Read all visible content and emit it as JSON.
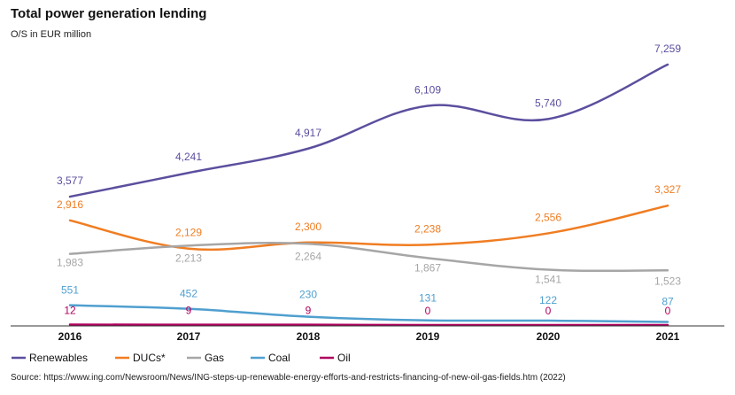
{
  "title": "Total power generation lending",
  "subtitle": "O/S in EUR million",
  "source": "Source: https://www.ing.com/Newsroom/News/ING-steps-up-renewable-energy-efforts-and-restricts-financing-of-new-oil-gas-fields.htm (2022)",
  "chart_data": {
    "type": "line",
    "x": [
      "2016",
      "2017",
      "2018",
      "2019",
      "2020",
      "2021"
    ],
    "ylim": [
      0,
      7700
    ],
    "grid": false,
    "legend_position": "bottom",
    "series": [
      {
        "name": "Renewables",
        "color": "#5b4f9e",
        "values": [
          3577,
          4241,
          4917,
          6109,
          5740,
          7259
        ],
        "labels": [
          "3,577",
          "4,241",
          "4,917",
          "6,109",
          "5,740",
          "7,259"
        ]
      },
      {
        "name": "DUCs*",
        "color": "#f07d22",
        "values": [
          2916,
          2129,
          2300,
          2238,
          2556,
          3327
        ],
        "labels": [
          "2,916",
          "2,129",
          "2,300",
          "2,238",
          "2,556",
          "3,327"
        ]
      },
      {
        "name": "Gas",
        "color": "#a6a6a6",
        "values": [
          1983,
          2213,
          2264,
          1867,
          1541,
          1523
        ],
        "labels": [
          "1,983",
          "2,213",
          "2,264",
          "1,867",
          "1,541",
          "1,523"
        ]
      },
      {
        "name": "Coal",
        "color": "#4f9fcf",
        "values": [
          551,
          452,
          230,
          131,
          122,
          87
        ],
        "labels": [
          "551",
          "452",
          "230",
          "131",
          "122",
          "87"
        ]
      },
      {
        "name": "Oil",
        "color": "#b0005e",
        "values": [
          12,
          9,
          9,
          0,
          0,
          0
        ],
        "labels": [
          "12",
          "9",
          "9",
          "0",
          "0",
          "0"
        ]
      }
    ]
  }
}
